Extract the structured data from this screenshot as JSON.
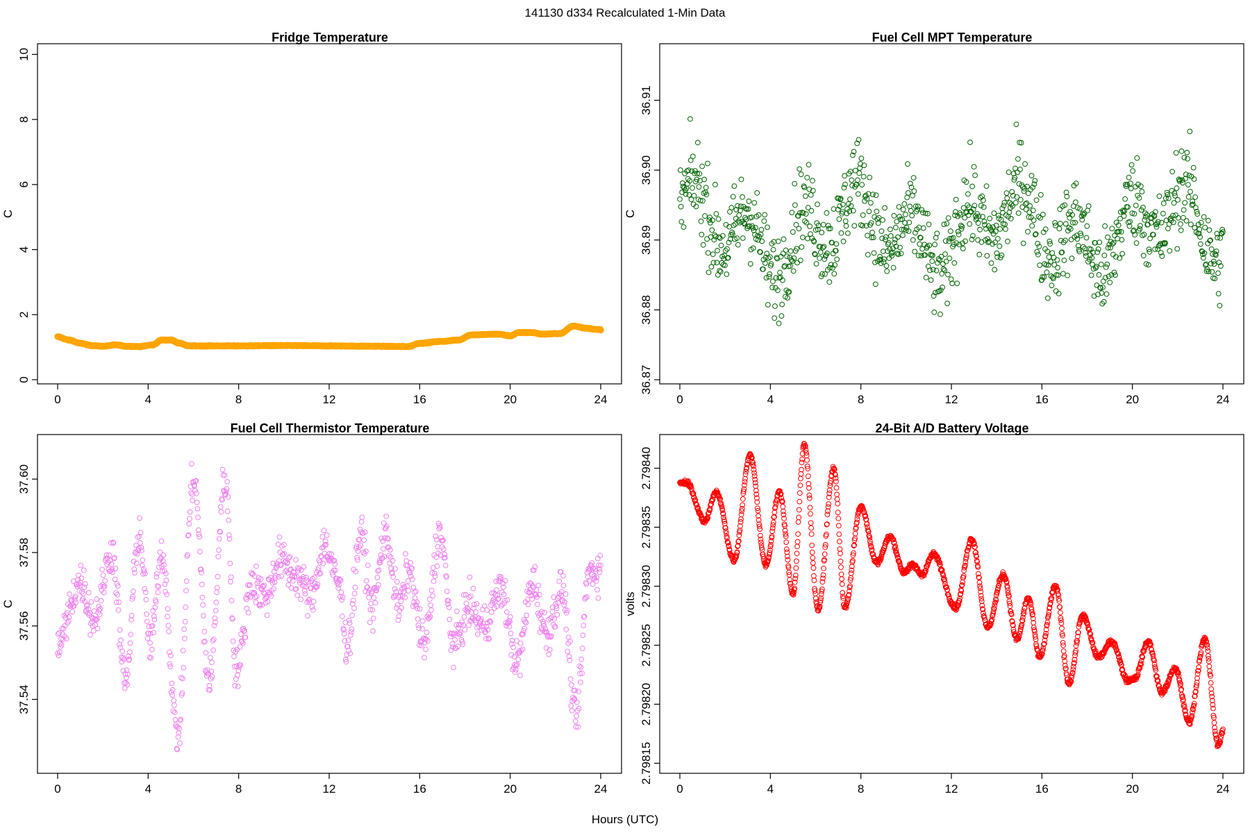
{
  "figure": {
    "title": "141130   d334   Recalculated 1-Min Data",
    "xlabel": "Hours (UTC)"
  },
  "chart_data": [
    {
      "type": "scatter",
      "title": "Fridge Temperature",
      "xlabel": "",
      "ylabel": "C",
      "xlim": [
        0,
        24
      ],
      "ylim": [
        0,
        10.2
      ],
      "xticks": [
        0,
        4,
        8,
        12,
        16,
        20,
        24
      ],
      "xtick_labels": [
        "0",
        "4",
        "8",
        "12",
        "16",
        "20",
        "24"
      ],
      "yticks": [
        0,
        2,
        4,
        6,
        8,
        10
      ],
      "ytick_labels": [
        "0",
        "2",
        "4",
        "6",
        "8",
        "10"
      ],
      "color": "#FFA500",
      "marker": "filled-circle",
      "series_points": 1440,
      "anchors": [
        [
          0,
          1.32
        ],
        [
          0.5,
          1.22
        ],
        [
          1.0,
          1.12
        ],
        [
          1.5,
          1.05
        ],
        [
          2.0,
          1.03
        ],
        [
          2.6,
          1.07
        ],
        [
          3.0,
          1.03
        ],
        [
          3.6,
          1.02
        ],
        [
          4.2,
          1.07
        ],
        [
          4.6,
          1.22
        ],
        [
          5.0,
          1.22
        ],
        [
          5.4,
          1.12
        ],
        [
          5.8,
          1.04
        ],
        [
          6.5,
          1.04
        ],
        [
          8.0,
          1.04
        ],
        [
          10.0,
          1.05
        ],
        [
          12.0,
          1.04
        ],
        [
          14.0,
          1.03
        ],
        [
          15.5,
          1.02
        ],
        [
          16.0,
          1.12
        ],
        [
          17.0,
          1.18
        ],
        [
          17.7,
          1.22
        ],
        [
          18.3,
          1.38
        ],
        [
          19.5,
          1.4
        ],
        [
          20.0,
          1.35
        ],
        [
          20.4,
          1.45
        ],
        [
          21.0,
          1.45
        ],
        [
          21.4,
          1.4
        ],
        [
          22.2,
          1.42
        ],
        [
          22.8,
          1.65
        ],
        [
          23.4,
          1.58
        ],
        [
          23.9,
          1.54
        ]
      ]
    },
    {
      "type": "scatter",
      "title": "Fuel Cell MPT Temperature",
      "xlabel": "",
      "ylabel": "C",
      "xlim": [
        0,
        24
      ],
      "ylim": [
        36.87,
        36.9175
      ],
      "xticks": [
        0,
        4,
        8,
        12,
        16,
        20,
        24
      ],
      "xtick_labels": [
        "0",
        "4",
        "8",
        "12",
        "16",
        "20",
        "24"
      ],
      "yticks": [
        36.87,
        36.88,
        36.89,
        36.9,
        36.91
      ],
      "ytick_labels": [
        "36.87",
        "36.88",
        "36.89",
        "36.90",
        "36.91"
      ],
      "color": "#006400",
      "marker": "open-circle",
      "series_points": 1000,
      "center": 36.8915,
      "spread": 0.006
    },
    {
      "type": "scatter",
      "title": "Fuel Cell Thermistor Temperature",
      "xlabel": "",
      "ylabel": "C",
      "xlim": [
        0,
        24
      ],
      "ylim": [
        37.521,
        37.611
      ],
      "xticks": [
        0,
        4,
        8,
        12,
        16,
        20,
        24
      ],
      "xtick_labels": [
        "0",
        "4",
        "8",
        "12",
        "16",
        "20",
        "24"
      ],
      "yticks": [
        37.54,
        37.56,
        37.58,
        37.6
      ],
      "ytick_labels": [
        "37.54",
        "37.56",
        "37.58",
        "37.60"
      ],
      "color": "#EE82EE",
      "marker": "open-circle",
      "series_points": 1100,
      "anchors": [
        [
          0,
          37.555
        ],
        [
          1.0,
          37.572
        ],
        [
          1.6,
          37.562
        ],
        [
          2.4,
          37.58
        ],
        [
          3.0,
          37.545
        ],
        [
          3.6,
          37.585
        ],
        [
          4.1,
          37.555
        ],
        [
          4.6,
          37.58
        ],
        [
          5.3,
          37.53
        ],
        [
          6.0,
          37.6
        ],
        [
          6.7,
          37.545
        ],
        [
          7.4,
          37.6
        ],
        [
          7.9,
          37.548
        ],
        [
          8.6,
          37.572
        ],
        [
          9.2,
          37.568
        ],
        [
          9.8,
          37.578
        ],
        [
          10.5,
          37.574
        ],
        [
          11.2,
          37.568
        ],
        [
          11.8,
          37.582
        ],
        [
          12.4,
          37.572
        ],
        [
          12.8,
          37.555
        ],
        [
          13.4,
          37.585
        ],
        [
          13.9,
          37.565
        ],
        [
          14.5,
          37.585
        ],
        [
          15.1,
          37.565
        ],
        [
          15.5,
          37.575
        ],
        [
          16.2,
          37.555
        ],
        [
          16.9,
          37.585
        ],
        [
          17.5,
          37.555
        ],
        [
          18.2,
          37.565
        ],
        [
          18.8,
          37.56
        ],
        [
          19.6,
          37.57
        ],
        [
          20.3,
          37.55
        ],
        [
          21.0,
          37.572
        ],
        [
          21.6,
          37.558
        ],
        [
          22.3,
          37.57
        ],
        [
          22.9,
          37.535
        ],
        [
          23.5,
          37.575
        ],
        [
          23.9,
          37.575
        ]
      ]
    },
    {
      "type": "scatter",
      "title": "24-Bit A/D Battery Voltage",
      "xlabel": "",
      "ylabel": "volts",
      "xlim": [
        0,
        24
      ],
      "ylim": [
        2.798145,
        2.798425
      ],
      "xticks": [
        0,
        4,
        8,
        12,
        16,
        20,
        24
      ],
      "xtick_labels": [
        "0",
        "4",
        "8",
        "12",
        "16",
        "20",
        "24"
      ],
      "yticks": [
        2.79815,
        2.7982,
        2.79825,
        2.7983,
        2.79835,
        2.7984
      ],
      "ytick_labels": [
        "2.79815",
        "2.79820",
        "2.79825",
        "2.79830",
        "2.79835",
        "2.79840"
      ],
      "color": "#FF0000",
      "marker": "open-circle",
      "series_points": 1440,
      "anchors": [
        [
          0,
          2.798388
        ],
        [
          0.3,
          2.798388
        ],
        [
          1.1,
          2.798355
        ],
        [
          1.6,
          2.79838
        ],
        [
          2.4,
          2.798322
        ],
        [
          3.1,
          2.798411
        ],
        [
          3.8,
          2.798318
        ],
        [
          4.4,
          2.79838
        ],
        [
          5.0,
          2.798294
        ],
        [
          5.5,
          2.79842
        ],
        [
          6.1,
          2.79828
        ],
        [
          6.8,
          2.7984
        ],
        [
          7.3,
          2.798282
        ],
        [
          8.0,
          2.798368
        ],
        [
          8.7,
          2.79832
        ],
        [
          9.3,
          2.798342
        ],
        [
          9.9,
          2.798312
        ],
        [
          10.3,
          2.798318
        ],
        [
          10.7,
          2.79831
        ],
        [
          11.2,
          2.798327
        ],
        [
          12.2,
          2.798282
        ],
        [
          12.9,
          2.79834
        ],
        [
          13.6,
          2.798265
        ],
        [
          14.3,
          2.79831
        ],
        [
          14.9,
          2.798255
        ],
        [
          15.4,
          2.79829
        ],
        [
          15.9,
          2.79824
        ],
        [
          16.6,
          2.7983
        ],
        [
          17.2,
          2.798218
        ],
        [
          17.8,
          2.798275
        ],
        [
          18.5,
          2.79824
        ],
        [
          19.1,
          2.798253
        ],
        [
          19.8,
          2.79822
        ],
        [
          20.1,
          2.798222
        ],
        [
          20.7,
          2.798253
        ],
        [
          21.3,
          2.79821
        ],
        [
          21.9,
          2.79823
        ],
        [
          22.5,
          2.798185
        ],
        [
          23.2,
          2.798255
        ],
        [
          23.8,
          2.798165
        ],
        [
          24.0,
          2.798178
        ]
      ]
    }
  ]
}
